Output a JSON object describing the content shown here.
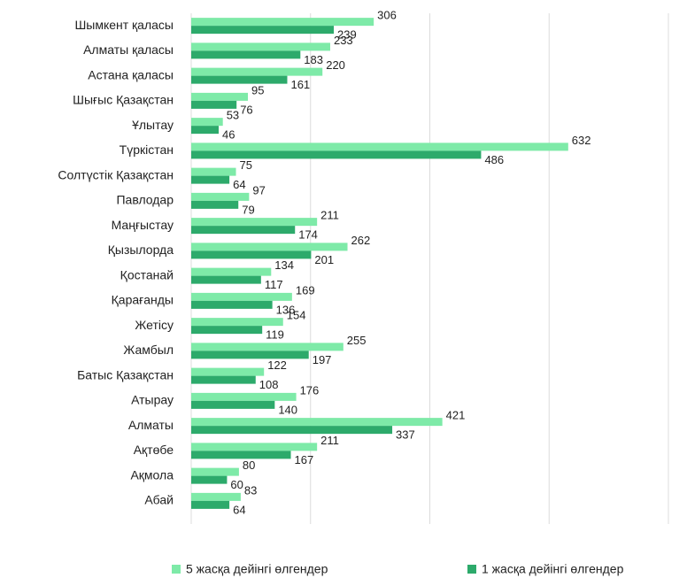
{
  "chart_data": {
    "type": "bar",
    "orientation": "horizontal",
    "categories": [
      "Шымкент қаласы",
      "Алматы қаласы",
      "Астана қаласы",
      "Шығыс Қазақстан",
      "Ұлытау",
      "Түркістан",
      "Солтүстік Қазақстан",
      "Павлодар",
      "Маңғыстау",
      "Қызылорда",
      "Қостанай",
      "Қарағанды",
      "Жетісу",
      "Жамбыл",
      "Батыс Қазақстан",
      "Атырау",
      "Алматы",
      "Ақтөбе",
      "Ақмола",
      "Абай"
    ],
    "series": [
      {
        "name": "5 жасқа дейінгі өлгендер",
        "color": "#7eeaa8",
        "values": [
          306,
          233,
          220,
          95,
          53,
          632,
          75,
          97,
          211,
          262,
          134,
          169,
          154,
          255,
          122,
          176,
          421,
          211,
          80,
          83
        ]
      },
      {
        "name": "1 жасқа дейінгі өлгендер",
        "color": "#2daa6b",
        "values": [
          239,
          183,
          161,
          76,
          46,
          486,
          64,
          79,
          174,
          201,
          117,
          136,
          119,
          197,
          108,
          140,
          337,
          167,
          60,
          64
        ]
      }
    ],
    "xlim": [
      0,
      800
    ],
    "xticks": [
      0,
      200,
      400,
      600,
      800
    ],
    "grid": true,
    "legend": "bottom"
  }
}
